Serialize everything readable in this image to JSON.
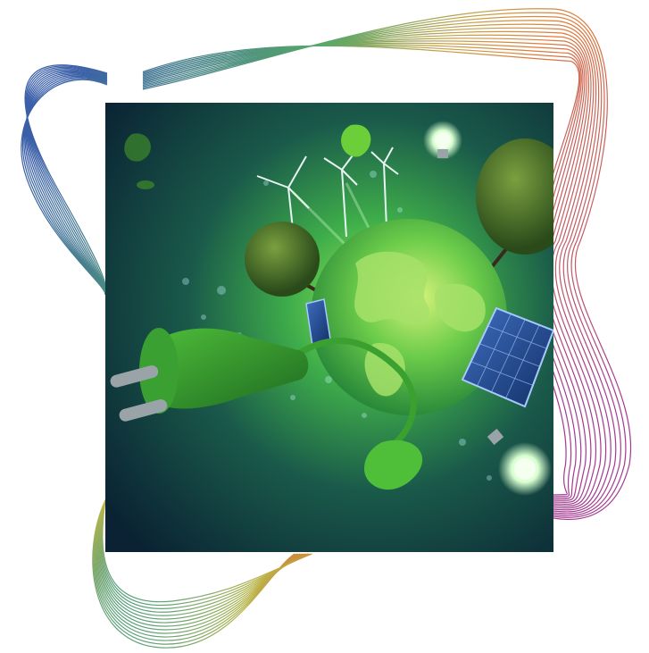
{
  "artwork": {
    "subject": "green-energy-composite",
    "contour_gradient": [
      "#3a5fa8",
      "#57a86a",
      "#c9a24a",
      "#e07a3a",
      "#a33a8f"
    ],
    "palette": {
      "background_dark": "#0b2a3a",
      "glow": "#7fe05a",
      "globe_land": "#8fd45a",
      "globe_ocean": "#3fae4a",
      "plug": "#2f8f2a",
      "solar_panel": "#1c4a8c"
    },
    "icons": [
      "power-plug-icon",
      "globe-icon",
      "wind-turbine-icon",
      "solar-panel-icon",
      "tree-icon",
      "light-bulb-icon",
      "leaf-icon"
    ]
  }
}
